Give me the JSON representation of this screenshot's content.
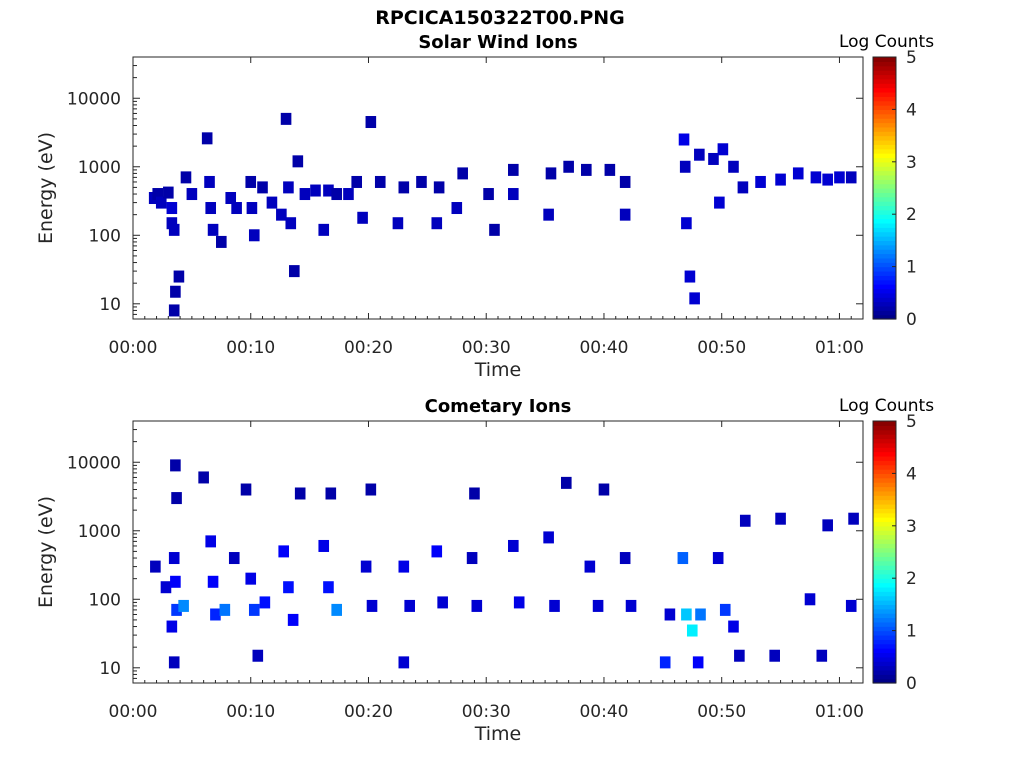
{
  "figure": {
    "title": "RPCICA150322T00.PNG"
  },
  "chart_data": [
    {
      "type": "heatmap",
      "title": "Solar Wind Ions",
      "xlabel": "Time",
      "ylabel": "Energy (eV)",
      "xlim": [
        "00:00",
        "01:02"
      ],
      "ylim": [
        6,
        40000
      ],
      "yscale": "log",
      "grid": false,
      "xticks": [
        "00:00",
        "00:10",
        "00:20",
        "00:30",
        "00:40",
        "00:50",
        "01:00"
      ],
      "yticks": [
        "10",
        "100",
        "1000",
        "10000"
      ],
      "colorbar": {
        "label": "Log Counts",
        "range": [
          0,
          5
        ],
        "ticks": [
          "0",
          "1",
          "2",
          "3",
          "4",
          "5"
        ],
        "colormap": "jet"
      },
      "cells": [
        {
          "t": 1.8,
          "e": 350,
          "c": 0.3
        },
        {
          "t": 2.1,
          "e": 400,
          "c": 0.2
        },
        {
          "t": 2.4,
          "e": 300,
          "c": 0.3
        },
        {
          "t": 3.0,
          "e": 420,
          "c": 0.2
        },
        {
          "t": 3.3,
          "e": 250,
          "c": 0.4
        },
        {
          "t": 3.3,
          "e": 150,
          "c": 0.3
        },
        {
          "t": 3.5,
          "e": 120,
          "c": 0.3
        },
        {
          "t": 3.5,
          "e": 8,
          "c": 0.2
        },
        {
          "t": 3.6,
          "e": 15,
          "c": 0.2
        },
        {
          "t": 3.9,
          "e": 25,
          "c": 0.2
        },
        {
          "t": 4.5,
          "e": 700,
          "c": 0.2
        },
        {
          "t": 5.0,
          "e": 400,
          "c": 0.3
        },
        {
          "t": 6.3,
          "e": 2600,
          "c": 0.2
        },
        {
          "t": 6.5,
          "e": 600,
          "c": 0.3
        },
        {
          "t": 6.6,
          "e": 250,
          "c": 0.3
        },
        {
          "t": 6.8,
          "e": 120,
          "c": 0.3
        },
        {
          "t": 7.5,
          "e": 80,
          "c": 0.2
        },
        {
          "t": 8.3,
          "e": 350,
          "c": 0.3
        },
        {
          "t": 8.8,
          "e": 250,
          "c": 0.3
        },
        {
          "t": 10.0,
          "e": 600,
          "c": 0.2
        },
        {
          "t": 10.1,
          "e": 250,
          "c": 0.3
        },
        {
          "t": 10.3,
          "e": 100,
          "c": 0.3
        },
        {
          "t": 11.0,
          "e": 500,
          "c": 0.2
        },
        {
          "t": 11.8,
          "e": 300,
          "c": 0.3
        },
        {
          "t": 12.6,
          "e": 200,
          "c": 0.3
        },
        {
          "t": 13.0,
          "e": 5000,
          "c": 0.2
        },
        {
          "t": 13.2,
          "e": 500,
          "c": 0.3
        },
        {
          "t": 13.4,
          "e": 150,
          "c": 0.3
        },
        {
          "t": 13.7,
          "e": 30,
          "c": 0.2
        },
        {
          "t": 14.0,
          "e": 1200,
          "c": 0.2
        },
        {
          "t": 14.6,
          "e": 400,
          "c": 0.3
        },
        {
          "t": 15.5,
          "e": 450,
          "c": 0.3
        },
        {
          "t": 16.2,
          "e": 120,
          "c": 0.3
        },
        {
          "t": 16.6,
          "e": 450,
          "c": 0.3
        },
        {
          "t": 17.3,
          "e": 400,
          "c": 0.2
        },
        {
          "t": 18.3,
          "e": 400,
          "c": 0.3
        },
        {
          "t": 19.0,
          "e": 600,
          "c": 0.2
        },
        {
          "t": 19.5,
          "e": 180,
          "c": 0.3
        },
        {
          "t": 20.2,
          "e": 4500,
          "c": 0.2
        },
        {
          "t": 21.0,
          "e": 600,
          "c": 0.2
        },
        {
          "t": 22.5,
          "e": 150,
          "c": 0.3
        },
        {
          "t": 23.0,
          "e": 500,
          "c": 0.2
        },
        {
          "t": 24.5,
          "e": 600,
          "c": 0.2
        },
        {
          "t": 25.8,
          "e": 150,
          "c": 0.3
        },
        {
          "t": 26.0,
          "e": 500,
          "c": 0.2
        },
        {
          "t": 27.5,
          "e": 250,
          "c": 0.3
        },
        {
          "t": 28.0,
          "e": 800,
          "c": 0.2
        },
        {
          "t": 30.2,
          "e": 400,
          "c": 0.2
        },
        {
          "t": 30.7,
          "e": 120,
          "c": 0.2
        },
        {
          "t": 32.3,
          "e": 400,
          "c": 0.3
        },
        {
          "t": 32.3,
          "e": 900,
          "c": 0.2
        },
        {
          "t": 35.3,
          "e": 200,
          "c": 0.3
        },
        {
          "t": 35.5,
          "e": 800,
          "c": 0.2
        },
        {
          "t": 37.0,
          "e": 1000,
          "c": 0.2
        },
        {
          "t": 38.5,
          "e": 900,
          "c": 0.2
        },
        {
          "t": 40.5,
          "e": 900,
          "c": 0.2
        },
        {
          "t": 41.8,
          "e": 200,
          "c": 0.3
        },
        {
          "t": 41.8,
          "e": 600,
          "c": 0.2
        },
        {
          "t": 46.8,
          "e": 2500,
          "c": 0.5
        },
        {
          "t": 46.9,
          "e": 1000,
          "c": 0.3
        },
        {
          "t": 47.0,
          "e": 150,
          "c": 0.4
        },
        {
          "t": 47.3,
          "e": 25,
          "c": 0.4
        },
        {
          "t": 47.7,
          "e": 12,
          "c": 0.4
        },
        {
          "t": 48.1,
          "e": 1500,
          "c": 0.3
        },
        {
          "t": 49.3,
          "e": 1300,
          "c": 0.3
        },
        {
          "t": 49.8,
          "e": 300,
          "c": 0.4
        },
        {
          "t": 50.1,
          "e": 1800,
          "c": 0.4
        },
        {
          "t": 51.0,
          "e": 1000,
          "c": 0.3
        },
        {
          "t": 51.8,
          "e": 500,
          "c": 0.3
        },
        {
          "t": 53.3,
          "e": 600,
          "c": 0.4
        },
        {
          "t": 55.0,
          "e": 650,
          "c": 0.4
        },
        {
          "t": 56.5,
          "e": 800,
          "c": 0.4
        },
        {
          "t": 58.0,
          "e": 700,
          "c": 0.4
        },
        {
          "t": 59.0,
          "e": 650,
          "c": 0.4
        },
        {
          "t": 60.0,
          "e": 700,
          "c": 0.4
        },
        {
          "t": 61.0,
          "e": 700,
          "c": 0.3
        }
      ]
    },
    {
      "type": "heatmap",
      "title": "Cometary Ions",
      "xlabel": "Time",
      "ylabel": "Energy (eV)",
      "xlim": [
        "00:00",
        "01:02"
      ],
      "ylim": [
        6,
        40000
      ],
      "yscale": "log",
      "grid": false,
      "xticks": [
        "00:00",
        "00:10",
        "00:20",
        "00:30",
        "00:40",
        "00:50",
        "01:00"
      ],
      "yticks": [
        "10",
        "100",
        "1000",
        "10000"
      ],
      "colorbar": {
        "label": "Log Counts",
        "range": [
          0,
          5
        ],
        "ticks": [
          "0",
          "1",
          "2",
          "3",
          "4",
          "5"
        ],
        "colormap": "jet"
      },
      "cells": [
        {
          "t": 1.9,
          "e": 300,
          "c": 0.3
        },
        {
          "t": 2.8,
          "e": 150,
          "c": 0.4
        },
        {
          "t": 3.3,
          "e": 40,
          "c": 0.5
        },
        {
          "t": 3.5,
          "e": 400,
          "c": 0.4
        },
        {
          "t": 3.6,
          "e": 180,
          "c": 0.6
        },
        {
          "t": 3.7,
          "e": 70,
          "c": 0.9
        },
        {
          "t": 3.5,
          "e": 12,
          "c": 0.3
        },
        {
          "t": 3.6,
          "e": 9000,
          "c": 0.2
        },
        {
          "t": 3.7,
          "e": 3000,
          "c": 0.2
        },
        {
          "t": 4.3,
          "e": 80,
          "c": 1.3
        },
        {
          "t": 6.0,
          "e": 6000,
          "c": 0.2
        },
        {
          "t": 6.6,
          "e": 700,
          "c": 0.5
        },
        {
          "t": 6.8,
          "e": 180,
          "c": 0.6
        },
        {
          "t": 7.0,
          "e": 60,
          "c": 0.8
        },
        {
          "t": 7.8,
          "e": 70,
          "c": 1.2
        },
        {
          "t": 8.6,
          "e": 400,
          "c": 0.3
        },
        {
          "t": 9.6,
          "e": 4000,
          "c": 0.2
        },
        {
          "t": 10.0,
          "e": 200,
          "c": 0.5
        },
        {
          "t": 10.3,
          "e": 70,
          "c": 0.9
        },
        {
          "t": 10.6,
          "e": 15,
          "c": 0.3
        },
        {
          "t": 11.2,
          "e": 90,
          "c": 0.7
        },
        {
          "t": 12.8,
          "e": 500,
          "c": 0.6
        },
        {
          "t": 13.2,
          "e": 150,
          "c": 0.7
        },
        {
          "t": 13.6,
          "e": 50,
          "c": 0.6
        },
        {
          "t": 14.2,
          "e": 3500,
          "c": 0.2
        },
        {
          "t": 16.2,
          "e": 600,
          "c": 0.5
        },
        {
          "t": 16.6,
          "e": 150,
          "c": 0.7
        },
        {
          "t": 17.3,
          "e": 70,
          "c": 1.3
        },
        {
          "t": 16.8,
          "e": 3500,
          "c": 0.2
        },
        {
          "t": 19.8,
          "e": 300,
          "c": 0.4
        },
        {
          "t": 20.3,
          "e": 80,
          "c": 0.4
        },
        {
          "t": 20.2,
          "e": 4000,
          "c": 0.2
        },
        {
          "t": 23.0,
          "e": 300,
          "c": 0.5
        },
        {
          "t": 23.5,
          "e": 80,
          "c": 0.4
        },
        {
          "t": 23.0,
          "e": 12,
          "c": 0.4
        },
        {
          "t": 25.8,
          "e": 500,
          "c": 0.6
        },
        {
          "t": 26.3,
          "e": 90,
          "c": 0.4
        },
        {
          "t": 28.8,
          "e": 400,
          "c": 0.3
        },
        {
          "t": 29.2,
          "e": 80,
          "c": 0.4
        },
        {
          "t": 29.0,
          "e": 3500,
          "c": 0.2
        },
        {
          "t": 32.3,
          "e": 600,
          "c": 0.4
        },
        {
          "t": 32.8,
          "e": 90,
          "c": 0.5
        },
        {
          "t": 35.3,
          "e": 800,
          "c": 0.4
        },
        {
          "t": 35.8,
          "e": 80,
          "c": 0.4
        },
        {
          "t": 36.8,
          "e": 5000,
          "c": 0.2
        },
        {
          "t": 38.8,
          "e": 300,
          "c": 0.4
        },
        {
          "t": 39.5,
          "e": 80,
          "c": 0.4
        },
        {
          "t": 40.0,
          "e": 4000,
          "c": 0.2
        },
        {
          "t": 41.8,
          "e": 400,
          "c": 0.3
        },
        {
          "t": 42.3,
          "e": 80,
          "c": 0.4
        },
        {
          "t": 45.2,
          "e": 12,
          "c": 0.8
        },
        {
          "t": 45.6,
          "e": 60,
          "c": 0.4
        },
        {
          "t": 46.7,
          "e": 400,
          "c": 1.1
        },
        {
          "t": 47.0,
          "e": 60,
          "c": 1.6
        },
        {
          "t": 47.5,
          "e": 35,
          "c": 1.8
        },
        {
          "t": 48.2,
          "e": 60,
          "c": 1.2
        },
        {
          "t": 48.0,
          "e": 12,
          "c": 0.6
        },
        {
          "t": 49.7,
          "e": 400,
          "c": 0.4
        },
        {
          "t": 50.3,
          "e": 70,
          "c": 0.9
        },
        {
          "t": 51.0,
          "e": 40,
          "c": 0.5
        },
        {
          "t": 51.5,
          "e": 15,
          "c": 0.3
        },
        {
          "t": 52.0,
          "e": 1400,
          "c": 0.3
        },
        {
          "t": 54.5,
          "e": 15,
          "c": 0.3
        },
        {
          "t": 55.0,
          "e": 1500,
          "c": 0.3
        },
        {
          "t": 57.5,
          "e": 100,
          "c": 0.4
        },
        {
          "t": 58.5,
          "e": 15,
          "c": 0.3
        },
        {
          "t": 59.0,
          "e": 1200,
          "c": 0.3
        },
        {
          "t": 61.0,
          "e": 80,
          "c": 0.4
        },
        {
          "t": 61.2,
          "e": 1500,
          "c": 0.3
        }
      ]
    }
  ]
}
